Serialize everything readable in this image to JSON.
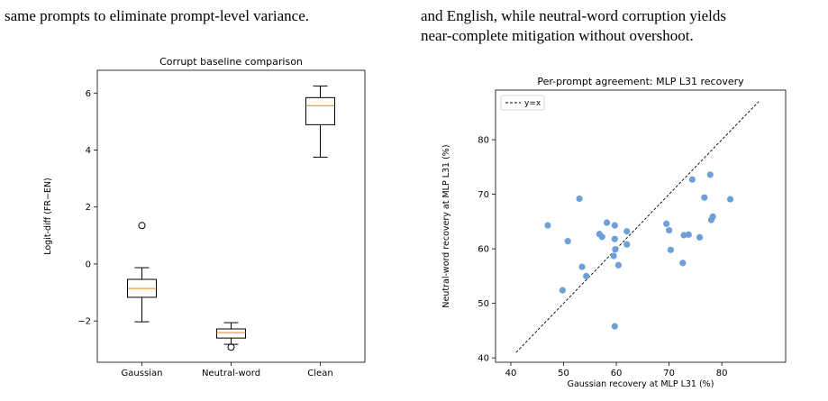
{
  "text": {
    "left": [
      "same prompts to eliminate prompt-level variance."
    ],
    "right": [
      "and English, while neutral-word corruption yields",
      "near-complete mitigation without overshoot."
    ]
  },
  "chart_data": [
    {
      "type": "box",
      "title": "Corrupt baseline comparison",
      "ylabel": "Logit-diff (FR−EN)",
      "categories": [
        "Gaussian",
        "Neutral-word",
        "Clean"
      ],
      "boxes": [
        {
          "whislo": -2.03,
          "q1": -1.17,
          "med": -0.86,
          "q3": -0.54,
          "whishi": -0.13,
          "fliers": [
            1.35
          ]
        },
        {
          "whislo": -2.82,
          "q1": -2.6,
          "med": -2.41,
          "q3": -2.28,
          "whishi": -2.06,
          "fliers": [
            -2.92
          ]
        },
        {
          "whislo": 3.75,
          "q1": 4.89,
          "med": 5.56,
          "q3": 5.84,
          "whishi": 6.25,
          "fliers": []
        }
      ],
      "box_color": "#000000",
      "median_color": "#ff7f0e",
      "ylim": [
        -3.45,
        6.8
      ],
      "yticks": [
        {
          "value": -2,
          "label": "−2"
        },
        0,
        2,
        4,
        6
      ]
    },
    {
      "type": "scatter",
      "title": "Per-prompt agreement: MLP L31 recovery",
      "xlabel": "Gaussian recovery at MLP L31 (%)",
      "ylabel": "Neutral-word recovery at MLP L31 (%)",
      "points": {
        "color": "#6f9fd8",
        "x": [
          47,
          50.8,
          49.8,
          53,
          53.5,
          54.3,
          56.8,
          57.3,
          58.2,
          59.7,
          59.5,
          59.8,
          59.7,
          60.4,
          59.7,
          62,
          62,
          69.5,
          70,
          70.3,
          72.6,
          72.8,
          73.7,
          74.4,
          75.8,
          76.7,
          77.8,
          78,
          78.3,
          81.6
        ],
        "values": [
          64.3,
          61.4,
          52.4,
          69.2,
          56.7,
          55,
          62.7,
          62.2,
          64.8,
          64.3,
          58.7,
          59.9,
          61.8,
          57,
          45.8,
          63.2,
          60.8,
          64.6,
          63.4,
          59.8,
          57.4,
          62.5,
          62.6,
          72.7,
          62.1,
          69.4,
          73.6,
          65.3,
          65.9,
          69.1
        ]
      },
      "series": [
        {
          "name": "y=x",
          "color": "#000000",
          "dashed": true,
          "x": [
            41,
            87
          ],
          "values": [
            41,
            87
          ]
        }
      ],
      "legend": "upper left",
      "xlim": [
        37.1,
        92.1
      ],
      "xticks": [
        40,
        50,
        60,
        70,
        80
      ],
      "ylim": [
        39.2,
        89.1
      ],
      "yticks": [
        40,
        50,
        60,
        70,
        80
      ]
    }
  ]
}
